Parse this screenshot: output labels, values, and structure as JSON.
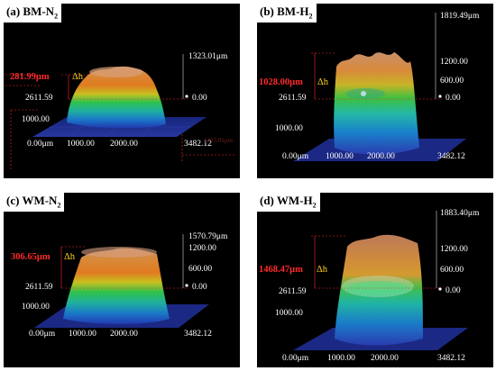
{
  "panels": [
    {
      "label_main": "(a) BM-N",
      "label_sub": "2",
      "top_value": "1323.01μm",
      "scale_mid": "",
      "scale_low": "",
      "zero_label": "0.00",
      "dh_value": "281.99μm",
      "dh_symbol": "Δh",
      "y_value": "2611.59",
      "y_mid": "1000.00",
      "x_origin": "0.00μm",
      "x1": "1000.00",
      "x2": "2000.00",
      "x_end": "3482.12",
      "ghost_text": "1323.01μm"
    },
    {
      "label_main": "(b) BM-H",
      "label_sub": "2",
      "top_value": "1819.49μm",
      "scale_mid": "1200.00",
      "scale_low": "600.00",
      "zero_label": "0.00",
      "dh_value": "1028.00μm",
      "dh_symbol": "Δh",
      "y_value": "2611.59",
      "y_mid": "1000.00",
      "x_origin": "0.00μm",
      "x1": "1000.00",
      "x2": "2000.00",
      "x_end": "3482.12",
      "ghost_text": ""
    },
    {
      "label_main": "(c) WM-N",
      "label_sub": "2",
      "top_value": "1570.79μm",
      "scale_mid": "1200.00",
      "scale_low": "600.00",
      "zero_label": "0.00",
      "dh_value": "306.65μm",
      "dh_symbol": "Δh",
      "y_value": "2611.59",
      "y_mid": "1000.00",
      "x_origin": "0.00μm",
      "x1": "1000.00",
      "x2": "2000.00",
      "x_end": "3482.12",
      "ghost_text": ""
    },
    {
      "label_main": "(d) WM-H",
      "label_sub": "2",
      "top_value": "1883.40μm",
      "scale_mid": "1200.00",
      "scale_low": "600.00",
      "zero_label": "0.00",
      "dh_value": "1468.47μm",
      "dh_symbol": "Δh",
      "y_value": "2611.59",
      "y_mid": "1000.00",
      "x_origin": "0.00μm",
      "x1": "1000.00",
      "x2": "2000.00",
      "x_end": "3482.12",
      "ghost_text": ""
    }
  ],
  "colors": {
    "panel_bg": "#000000",
    "dh_red": "#ff2a2a",
    "dh_yellow": "#ffd21e",
    "grid_blue": "#2a3ea8",
    "label_white": "#ffffff"
  }
}
